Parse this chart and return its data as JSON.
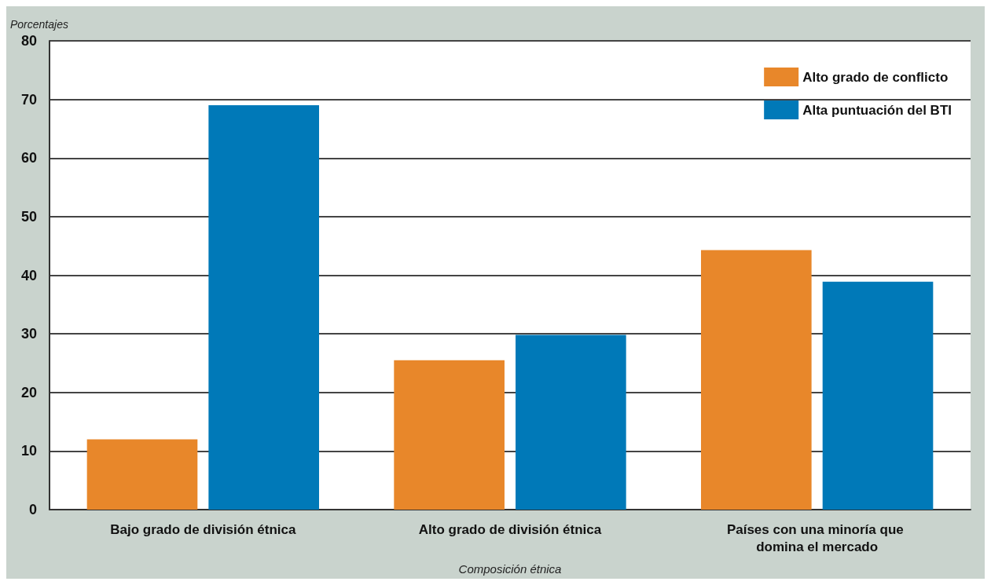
{
  "chart_data": {
    "type": "bar",
    "ylabel": "Porcentajes",
    "xlabel": "Composición étnica",
    "categories": [
      "Bajo grado de división étnica",
      "Alto grado de división étnica",
      "Países con una minoría que domina el mercado"
    ],
    "series": [
      {
        "name": "Alto grado de conflicto",
        "color": "#e8872a",
        "values": [
          12,
          25.5,
          44.3
        ]
      },
      {
        "name": "Alta puntuación del BTI",
        "color": "#0079b8",
        "values": [
          69,
          29.8,
          38.9
        ]
      }
    ],
    "ylim": [
      0,
      80
    ],
    "yticks": [
      0,
      10,
      20,
      30,
      40,
      50,
      60,
      70,
      80
    ],
    "grid": "y",
    "legend": "top right"
  }
}
